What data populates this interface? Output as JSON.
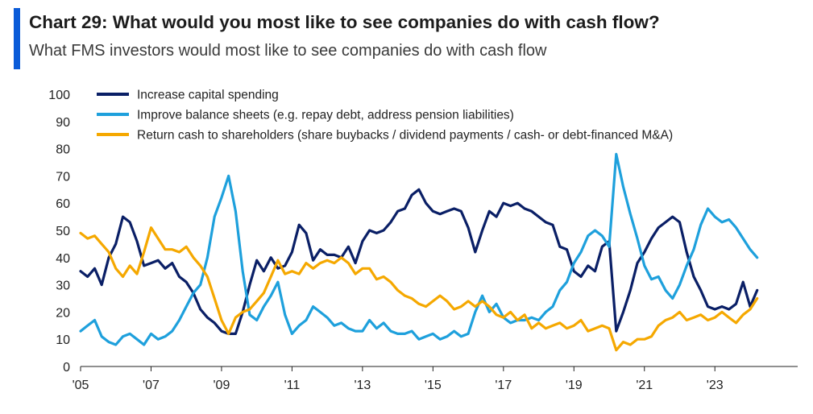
{
  "header": {
    "title": "Chart 29: What would you most like to see companies do with cash flow?",
    "subtitle": "What FMS investors would most like to see companies do with cash flow"
  },
  "colors": {
    "accent": "#0a5bd8"
  },
  "chart_data": {
    "type": "line",
    "title": "Chart 29: What would you most like to see companies do with cash flow?",
    "subtitle": "What FMS investors would most like to see companies do with cash flow",
    "xlabel": "",
    "ylabel": "",
    "xlim": [
      2005,
      2025.35
    ],
    "ylim": [
      0,
      100
    ],
    "y_ticks": [
      0,
      10,
      20,
      30,
      40,
      50,
      60,
      70,
      80,
      90,
      100
    ],
    "x_tick_values": [
      2005,
      2007,
      2009,
      2011,
      2013,
      2015,
      2017,
      2019,
      2021,
      2023
    ],
    "x_tick_labels": [
      "'05",
      "'07",
      "'09",
      "'11",
      "'13",
      "'15",
      "'17",
      "'19",
      "'21",
      "'23"
    ],
    "grid": false,
    "legend_position": "top",
    "series": [
      {
        "name": "Increase capital spending",
        "color": "#0a1f66",
        "x": [
          2005.0,
          2005.2,
          2005.4,
          2005.6,
          2005.8,
          2006.0,
          2006.2,
          2006.4,
          2006.6,
          2006.8,
          2007.0,
          2007.2,
          2007.4,
          2007.6,
          2007.8,
          2008.0,
          2008.2,
          2008.4,
          2008.6,
          2008.8,
          2009.0,
          2009.2,
          2009.4,
          2009.6,
          2009.8,
          2010.0,
          2010.2,
          2010.4,
          2010.6,
          2010.8,
          2011.0,
          2011.2,
          2011.4,
          2011.6,
          2011.8,
          2012.0,
          2012.2,
          2012.4,
          2012.6,
          2012.8,
          2013.0,
          2013.2,
          2013.4,
          2013.6,
          2013.8,
          2014.0,
          2014.2,
          2014.4,
          2014.6,
          2014.8,
          2015.0,
          2015.2,
          2015.4,
          2015.6,
          2015.8,
          2016.0,
          2016.2,
          2016.4,
          2016.6,
          2016.8,
          2017.0,
          2017.2,
          2017.4,
          2017.6,
          2017.8,
          2018.0,
          2018.2,
          2018.4,
          2018.6,
          2018.8,
          2019.0,
          2019.2,
          2019.4,
          2019.6,
          2019.8,
          2020.0,
          2020.2,
          2020.4,
          2020.6,
          2020.8,
          2021.0,
          2021.2,
          2021.4,
          2021.6,
          2021.8,
          2022.0,
          2022.2,
          2022.4,
          2022.6,
          2022.8,
          2023.0,
          2023.2,
          2023.4,
          2023.6,
          2023.8,
          2024.0,
          2024.2
        ],
        "values": [
          35,
          33,
          36,
          30,
          40,
          45,
          55,
          53,
          46,
          37,
          38,
          39,
          36,
          38,
          33,
          31,
          27,
          21,
          18,
          16,
          13,
          12,
          12,
          20,
          30,
          39,
          35,
          40,
          36,
          37,
          42,
          52,
          49,
          39,
          43,
          41,
          41,
          40,
          44,
          38,
          46,
          50,
          49,
          50,
          53,
          57,
          58,
          63,
          65,
          60,
          57,
          56,
          57,
          58,
          57,
          51,
          42,
          50,
          57,
          55,
          60,
          59,
          60,
          58,
          57,
          55,
          53,
          52,
          44,
          43,
          35,
          33,
          37,
          35,
          44,
          46,
          13,
          20,
          28,
          38,
          42,
          47,
          51,
          53,
          55,
          53,
          42,
          33,
          28,
          22,
          21,
          22,
          21,
          23,
          31,
          22,
          28
        ]
      },
      {
        "name": "Improve balance sheets (e.g. repay debt, address pension liabilities)",
        "color": "#1ea0dc",
        "x": [
          2005.0,
          2005.2,
          2005.4,
          2005.6,
          2005.8,
          2006.0,
          2006.2,
          2006.4,
          2006.6,
          2006.8,
          2007.0,
          2007.2,
          2007.4,
          2007.6,
          2007.8,
          2008.0,
          2008.2,
          2008.4,
          2008.6,
          2008.8,
          2009.0,
          2009.2,
          2009.4,
          2009.6,
          2009.8,
          2010.0,
          2010.2,
          2010.4,
          2010.6,
          2010.8,
          2011.0,
          2011.2,
          2011.4,
          2011.6,
          2011.8,
          2012.0,
          2012.2,
          2012.4,
          2012.6,
          2012.8,
          2013.0,
          2013.2,
          2013.4,
          2013.6,
          2013.8,
          2014.0,
          2014.2,
          2014.4,
          2014.6,
          2014.8,
          2015.0,
          2015.2,
          2015.4,
          2015.6,
          2015.8,
          2016.0,
          2016.2,
          2016.4,
          2016.6,
          2016.8,
          2017.0,
          2017.2,
          2017.4,
          2017.6,
          2017.8,
          2018.0,
          2018.2,
          2018.4,
          2018.6,
          2018.8,
          2019.0,
          2019.2,
          2019.4,
          2019.6,
          2019.8,
          2020.0,
          2020.2,
          2020.4,
          2020.6,
          2020.8,
          2021.0,
          2021.2,
          2021.4,
          2021.6,
          2021.8,
          2022.0,
          2022.2,
          2022.4,
          2022.6,
          2022.8,
          2023.0,
          2023.2,
          2023.4,
          2023.6,
          2023.8,
          2024.0,
          2024.2
        ],
        "values": [
          13,
          15,
          17,
          11,
          9,
          8,
          11,
          12,
          10,
          8,
          12,
          10,
          11,
          13,
          17,
          22,
          27,
          30,
          40,
          55,
          62,
          70,
          57,
          35,
          19,
          17,
          22,
          26,
          31,
          19,
          12,
          15,
          17,
          22,
          20,
          18,
          15,
          16,
          14,
          13,
          13,
          17,
          14,
          16,
          13,
          12,
          12,
          13,
          10,
          11,
          12,
          10,
          11,
          13,
          11,
          12,
          20,
          26,
          20,
          23,
          18,
          16,
          17,
          17,
          18,
          17,
          20,
          22,
          28,
          31,
          38,
          42,
          48,
          50,
          48,
          44,
          78,
          66,
          56,
          47,
          37,
          32,
          33,
          28,
          25,
          30,
          37,
          43,
          52,
          58,
          55,
          53,
          54,
          51,
          47,
          43,
          40
        ]
      },
      {
        "name": "Return cash to shareholders (share buybacks / dividend payments / cash- or debt-financed M&A)",
        "color": "#f5a800",
        "x": [
          2005.0,
          2005.2,
          2005.4,
          2005.6,
          2005.8,
          2006.0,
          2006.2,
          2006.4,
          2006.6,
          2006.8,
          2007.0,
          2007.2,
          2007.4,
          2007.6,
          2007.8,
          2008.0,
          2008.2,
          2008.4,
          2008.6,
          2008.8,
          2009.0,
          2009.2,
          2009.4,
          2009.6,
          2009.8,
          2010.0,
          2010.2,
          2010.4,
          2010.6,
          2010.8,
          2011.0,
          2011.2,
          2011.4,
          2011.6,
          2011.8,
          2012.0,
          2012.2,
          2012.4,
          2012.6,
          2012.8,
          2013.0,
          2013.2,
          2013.4,
          2013.6,
          2013.8,
          2014.0,
          2014.2,
          2014.4,
          2014.6,
          2014.8,
          2015.0,
          2015.2,
          2015.4,
          2015.6,
          2015.8,
          2016.0,
          2016.2,
          2016.4,
          2016.6,
          2016.8,
          2017.0,
          2017.2,
          2017.4,
          2017.6,
          2017.8,
          2018.0,
          2018.2,
          2018.4,
          2018.6,
          2018.8,
          2019.0,
          2019.2,
          2019.4,
          2019.6,
          2019.8,
          2020.0,
          2020.2,
          2020.4,
          2020.6,
          2020.8,
          2021.0,
          2021.2,
          2021.4,
          2021.6,
          2021.8,
          2022.0,
          2022.2,
          2022.4,
          2022.6,
          2022.8,
          2023.0,
          2023.2,
          2023.4,
          2023.6,
          2023.8,
          2024.0,
          2024.2
        ],
        "values": [
          49,
          47,
          48,
          45,
          42,
          36,
          33,
          37,
          34,
          42,
          51,
          47,
          43,
          43,
          42,
          44,
          40,
          37,
          33,
          25,
          17,
          12,
          18,
          20,
          21,
          24,
          27,
          33,
          39,
          34,
          35,
          34,
          38,
          36,
          38,
          39,
          38,
          40,
          38,
          34,
          36,
          36,
          32,
          33,
          31,
          28,
          26,
          25,
          23,
          22,
          24,
          26,
          24,
          21,
          22,
          24,
          22,
          24,
          22,
          19,
          18,
          20,
          17,
          19,
          14,
          16,
          14,
          15,
          16,
          14,
          15,
          17,
          13,
          14,
          15,
          14,
          6,
          9,
          8,
          10,
          10,
          11,
          15,
          17,
          18,
          20,
          17,
          18,
          19,
          17,
          18,
          20,
          18,
          16,
          19,
          21,
          25
        ]
      }
    ]
  }
}
